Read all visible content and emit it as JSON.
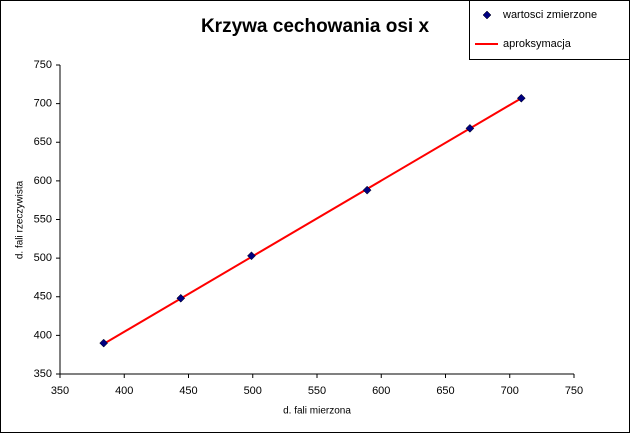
{
  "chart_data": {
    "type": "scatter",
    "title": "Krzywa cechowania osi x",
    "x_label": "d. fali mierzona",
    "y_label": "d. fali rzeczywista",
    "xlim": [
      350,
      750
    ],
    "xticks": [
      350,
      400,
      450,
      500,
      550,
      600,
      650,
      700,
      750
    ],
    "ylim": [
      350,
      750
    ],
    "yticks": [
      350,
      400,
      450,
      500,
      550,
      600,
      650,
      700,
      750
    ],
    "grid": false,
    "legend": "top-right",
    "series": [
      {
        "name": "wartosci zmierzone",
        "color": "#000080",
        "mode": "markers",
        "x": [
          384,
          444,
          499,
          589,
          669,
          709
        ],
        "values": [
          390,
          448,
          503,
          588,
          668,
          707
        ]
      },
      {
        "name": "aproksymacja",
        "color": "#ff0000",
        "mode": "line",
        "x": [
          384,
          709
        ],
        "values": [
          389,
          707
        ]
      }
    ]
  }
}
